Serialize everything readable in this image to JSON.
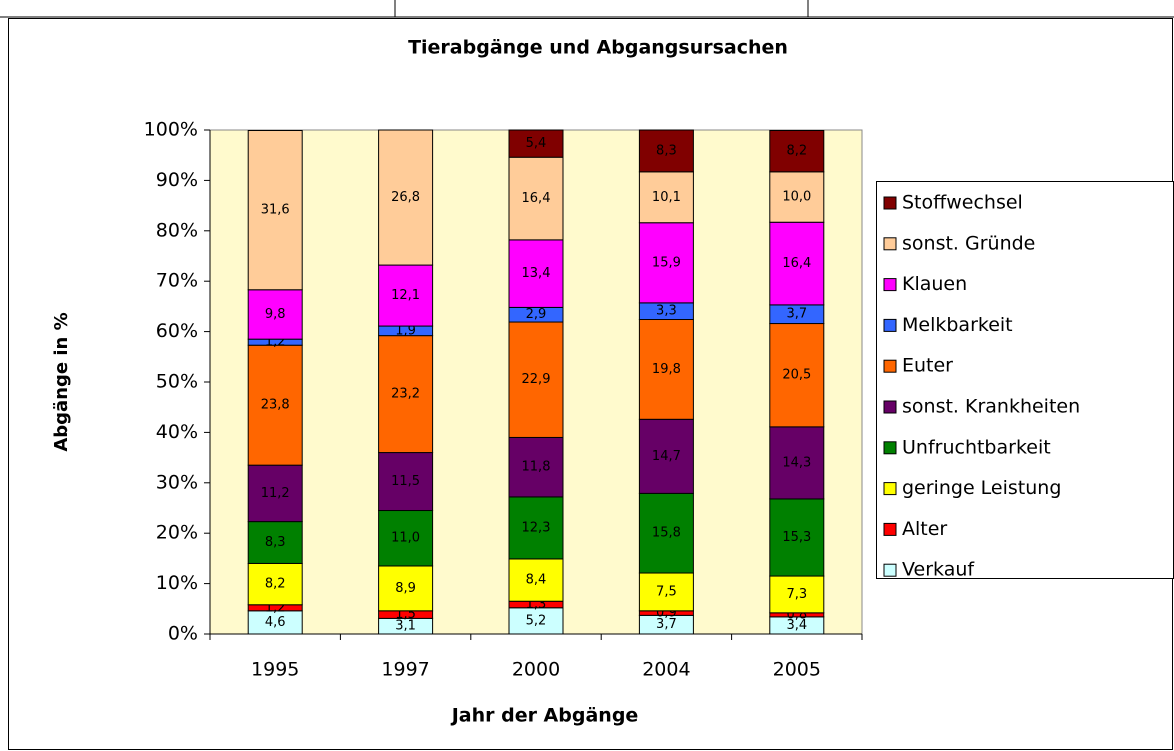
{
  "chart_data": {
    "type": "bar",
    "stacked": true,
    "title": "Tierabgänge und Abgangsursachen",
    "y_label": "Abgänge in %",
    "x_label": "Jahr der Abgänge",
    "categories": [
      "1995",
      "1997",
      "2000",
      "2004",
      "2005"
    ],
    "ylim": [
      0,
      100
    ],
    "yticks": [
      {
        "value": 0,
        "label": "0%"
      },
      {
        "value": 10,
        "label": "10%"
      },
      {
        "value": 20,
        "label": "20%"
      },
      {
        "value": 30,
        "label": "30%"
      },
      {
        "value": 40,
        "label": "40%"
      },
      {
        "value": 50,
        "label": "50%"
      },
      {
        "value": 60,
        "label": "60%"
      },
      {
        "value": 70,
        "label": "70%"
      },
      {
        "value": 80,
        "label": "80%"
      },
      {
        "value": 90,
        "label": "90%"
      },
      {
        "value": 100,
        "label": "100%"
      }
    ],
    "legend": "right",
    "series": [
      {
        "name": "Verkauf",
        "color": "#CCFFFF",
        "values": [
          4.6,
          3.1,
          5.2,
          3.7,
          3.4
        ],
        "value_labels": [
          "4,6",
          "3,1",
          "5,2",
          "3,7",
          "3,4"
        ]
      },
      {
        "name": "Alter",
        "color": "#FF0000",
        "values": [
          1.2,
          1.5,
          1.3,
          0.9,
          0.8
        ],
        "value_labels": [
          "1,2",
          "1,5",
          "1,3",
          "0,9",
          "0,8"
        ]
      },
      {
        "name": "geringe Leistung",
        "color": "#FFFF00",
        "values": [
          8.2,
          8.9,
          8.4,
          7.5,
          7.3
        ],
        "value_labels": [
          "8,2",
          "8,9",
          "8,4",
          "7,5",
          "7,3"
        ]
      },
      {
        "name": "Unfruchtbarkeit",
        "color": "#008000",
        "values": [
          8.3,
          11.0,
          12.3,
          15.8,
          15.3
        ],
        "value_labels": [
          "8,3",
          "11,0",
          "12,3",
          "15,8",
          "15,3"
        ]
      },
      {
        "name": "sonst. Krankheiten",
        "color": "#660066",
        "values": [
          11.2,
          11.5,
          11.8,
          14.7,
          14.3
        ],
        "value_labels": [
          "11,2",
          "11,5",
          "11,8",
          "14,7",
          "14,3"
        ]
      },
      {
        "name": "Euter",
        "color": "#FF6600",
        "values": [
          23.8,
          23.2,
          22.9,
          19.8,
          20.5
        ],
        "value_labels": [
          "23,8",
          "23,2",
          "22,9",
          "19,8",
          "20,5"
        ]
      },
      {
        "name": "Melkbarkeit",
        "color": "#3366FF",
        "values": [
          1.2,
          1.9,
          2.9,
          3.3,
          3.7
        ],
        "value_labels": [
          "1,2",
          "1,9",
          "2,9",
          "3,3",
          "3,7"
        ]
      },
      {
        "name": "Klauen",
        "color": "#FF00FF",
        "values": [
          9.8,
          12.1,
          13.4,
          15.9,
          16.4
        ],
        "value_labels": [
          "9,8",
          "12,1",
          "13,4",
          "15,9",
          "16,4"
        ]
      },
      {
        "name": "sonst. Gründe",
        "color": "#FFCC99",
        "values": [
          31.6,
          26.8,
          16.4,
          10.1,
          10.0
        ],
        "value_labels": [
          "31,6",
          "26,8",
          "16,4",
          "10,1",
          "10,0"
        ]
      },
      {
        "name": "Stoffwechsel",
        "color": "#800000",
        "values": [
          null,
          null,
          5.4,
          8.3,
          8.2
        ],
        "value_labels": [
          null,
          null,
          "5,4",
          "8,3",
          "8,2"
        ]
      }
    ]
  }
}
